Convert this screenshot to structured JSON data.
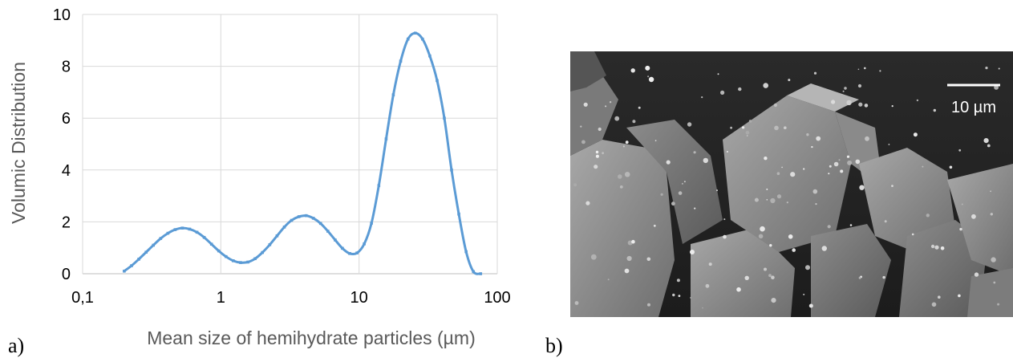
{
  "chart_data": {
    "type": "line",
    "xscale": "log",
    "xlim": [
      0.1,
      100
    ],
    "ylim": [
      0,
      10
    ],
    "x_tick_labels": [
      "0,1",
      "1",
      "10",
      "100"
    ],
    "y_tick_labels": [
      "0",
      "2",
      "4",
      "6",
      "8",
      "10"
    ],
    "xlabel": "Mean size of hemihydrate particles (µm)",
    "ylabel": "Volumic Distribution",
    "grid": true,
    "line_color": "#5b9bd5",
    "series": [
      {
        "x": [
          0.2,
          0.226,
          0.255,
          0.288,
          0.325,
          0.367,
          0.414,
          0.467,
          0.527,
          0.595,
          0.672,
          0.758,
          0.856,
          0.966,
          1.09,
          1.23,
          1.39,
          1.57,
          1.77,
          2.0,
          2.26,
          2.55,
          2.88,
          3.25,
          3.67,
          4.14,
          4.67,
          5.27,
          5.95,
          6.72,
          7.58,
          8.56,
          9.66,
          10.9,
          12.3,
          13.9,
          15.7,
          17.7,
          20.0,
          22.6,
          25.5,
          28.8,
          32.5,
          36.7,
          41.4,
          46.7,
          52.7,
          59.5,
          67.2,
          75.8
        ],
        "y": [
          0.1,
          0.31,
          0.56,
          0.83,
          1.1,
          1.36,
          1.56,
          1.7,
          1.76,
          1.72,
          1.6,
          1.4,
          1.14,
          0.88,
          0.66,
          0.5,
          0.43,
          0.45,
          0.58,
          0.82,
          1.12,
          1.46,
          1.8,
          2.06,
          2.2,
          2.24,
          2.14,
          1.94,
          1.64,
          1.3,
          0.98,
          0.78,
          0.8,
          1.15,
          1.95,
          3.4,
          5.2,
          6.9,
          8.2,
          9.05,
          9.28,
          9.05,
          8.4,
          7.45,
          6.0,
          4.0,
          2.3,
          0.85,
          0.08,
          0.0
        ]
      }
    ]
  },
  "panel_a_label": "a)",
  "panel_b_label": "b)",
  "scale_bar_label": "10 µm"
}
